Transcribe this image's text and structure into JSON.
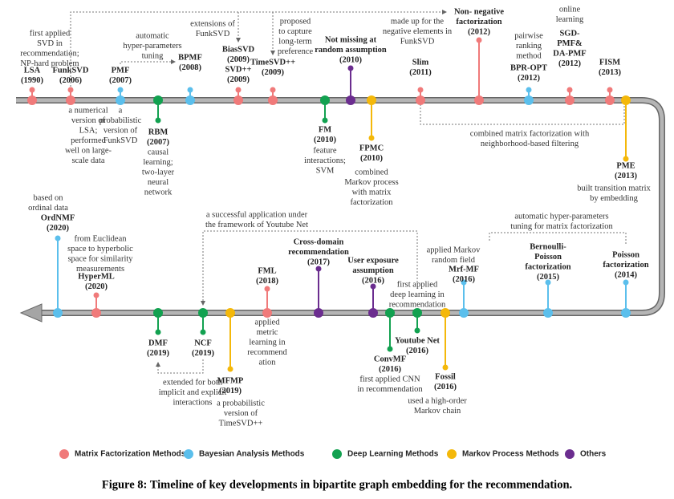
{
  "legend": [
    {
      "name": "Matrix Factorization Methods",
      "color": "#f07a7a"
    },
    {
      "name": "Bayesian Analysis Methods",
      "color": "#5bbfec"
    },
    {
      "name": "Deep Learning Methods",
      "color": "#12a150"
    },
    {
      "name": "Markov Process Methods",
      "color": "#f4b80a"
    },
    {
      "name": "Others",
      "color": "#6b2d8f"
    }
  ],
  "nodes": [
    {
      "label": [
        "LSA",
        "(1990)"
      ],
      "category": 0,
      "note": [
        "first applied",
        "SVD in",
        "recommendation;",
        "NP-hard problem"
      ]
    },
    {
      "label": [
        "FunkSVD",
        "(2006)"
      ],
      "category": 0,
      "note": [
        "a numerical",
        "version of",
        "LSA;",
        "performed",
        "well on large-",
        "scale data"
      ]
    },
    {
      "label": [
        "PMF",
        "(2007)"
      ],
      "category": 1,
      "note": [
        "a",
        "probabilistic",
        "version of",
        "FunkSVD"
      ]
    },
    {
      "label": [
        "BPMF",
        "(2008)"
      ],
      "category": 1
    },
    {
      "label": [
        "RBM",
        "(2007)"
      ],
      "category": 2,
      "note": [
        "causal",
        "learning;",
        "two-layer",
        "neural",
        "network"
      ]
    },
    {
      "label": [
        "BiasSVD",
        "(2009)",
        "SVD++",
        "(2009)"
      ],
      "category": 0
    },
    {
      "label": [
        "TimeSVD++",
        "(2009)"
      ],
      "category": 0,
      "note": [
        "proposed",
        "to capture",
        "long-term",
        "preference"
      ]
    },
    {
      "label": [
        "FM",
        "(2010)"
      ],
      "category": 2,
      "note": [
        "feature",
        "interactions;",
        "SVM"
      ]
    },
    {
      "label": [
        "Not missing at",
        "random assumption",
        "(2010)"
      ],
      "category": 4
    },
    {
      "label": [
        "FPMC",
        "(2010)"
      ],
      "category": 3,
      "note": [
        "combined",
        "Markov process",
        "with matrix",
        "factorization"
      ]
    },
    {
      "label": [
        "Slim",
        "(2011)"
      ],
      "category": 0
    },
    {
      "label": [
        "Non- negative",
        "factorization",
        "(2012)"
      ],
      "category": 0
    },
    {
      "label": [
        "BPR-OPT",
        "(2012)"
      ],
      "category": 1,
      "note": [
        "pairwise",
        "ranking",
        "method"
      ]
    },
    {
      "label": [
        "SGD-",
        "PMF&",
        "DA-PMF",
        "(2012)"
      ],
      "category": 0,
      "note": [
        "online",
        "learning"
      ]
    },
    {
      "label": [
        "FISM",
        "(2013)"
      ],
      "category": 0
    },
    {
      "label": [
        "PME",
        "(2013)"
      ],
      "category": 3,
      "note": [
        "built transition matrix",
        "by embedding"
      ]
    },
    {
      "label": [
        "Poisson",
        "factorization",
        "(2014)"
      ],
      "category": 1
    },
    {
      "label": [
        "Bernoulli-",
        "Poisson",
        "factorization",
        "(2015)"
      ],
      "category": 1
    },
    {
      "label": [
        "Mrf-MF",
        "(2016)"
      ],
      "category": 1,
      "note": [
        "applied Markov",
        "random field"
      ]
    },
    {
      "label": [
        "Fossil",
        "(2016)"
      ],
      "category": 3,
      "note": [
        "used a high-order",
        "Markov chain"
      ]
    },
    {
      "label": [
        "Youtube Net",
        "(2016)"
      ],
      "category": 2
    },
    {
      "label": [
        "ConvMF",
        "(2016)"
      ],
      "category": 2,
      "note": [
        "first applied CNN",
        "in recommendation"
      ]
    },
    {
      "label": [
        "User exposure",
        "assumption",
        "(2016)"
      ],
      "category": 4
    },
    {
      "label": [
        "Cross-domain",
        "recommendation",
        "(2017)"
      ],
      "category": 4
    },
    {
      "label": [
        "FML",
        "(2018)"
      ],
      "category": 0,
      "note": [
        "applied",
        "metric",
        "learning in",
        "recommend",
        "ation"
      ]
    },
    {
      "label": [
        "MFMP",
        "(2019)"
      ],
      "category": 3,
      "note": [
        "a probabilistic",
        "version of",
        "TimeSVD++"
      ]
    },
    {
      "label": [
        "NCF",
        "(2019)"
      ],
      "category": 2
    },
    {
      "label": [
        "DMF",
        "(2019)"
      ],
      "category": 2
    },
    {
      "label": [
        "HyperML",
        "(2020)"
      ],
      "category": 0,
      "note": [
        "from Euclidean",
        "space to hyperbolic",
        "space for similarity",
        "measurements"
      ]
    },
    {
      "label": [
        "OrdNMF",
        "(2020)"
      ],
      "category": 1,
      "note": [
        "based on",
        "ordinal data"
      ]
    }
  ],
  "annotations": [
    [
      "automatic",
      "hyper-parameters",
      "tuning"
    ],
    [
      "extensions of",
      "FunkSVD"
    ],
    [
      "made up for the",
      "negative elements in",
      "FunkSVD"
    ],
    [
      "combined matrix factorization with",
      "neighborhood-based filtering"
    ],
    [
      "automatic hyper-parameters",
      "tuning for matrix factorization"
    ],
    [
      "a successful application under",
      "the framework of Youtube Net"
    ],
    [
      "first applied",
      "deep learning in",
      "recommendation"
    ],
    [
      "extended for both",
      "implicit and explicit",
      "interactions"
    ]
  ],
  "caption": "Figure 8: Timeline of key developments in bipartite graph embedding for the recommendation."
}
